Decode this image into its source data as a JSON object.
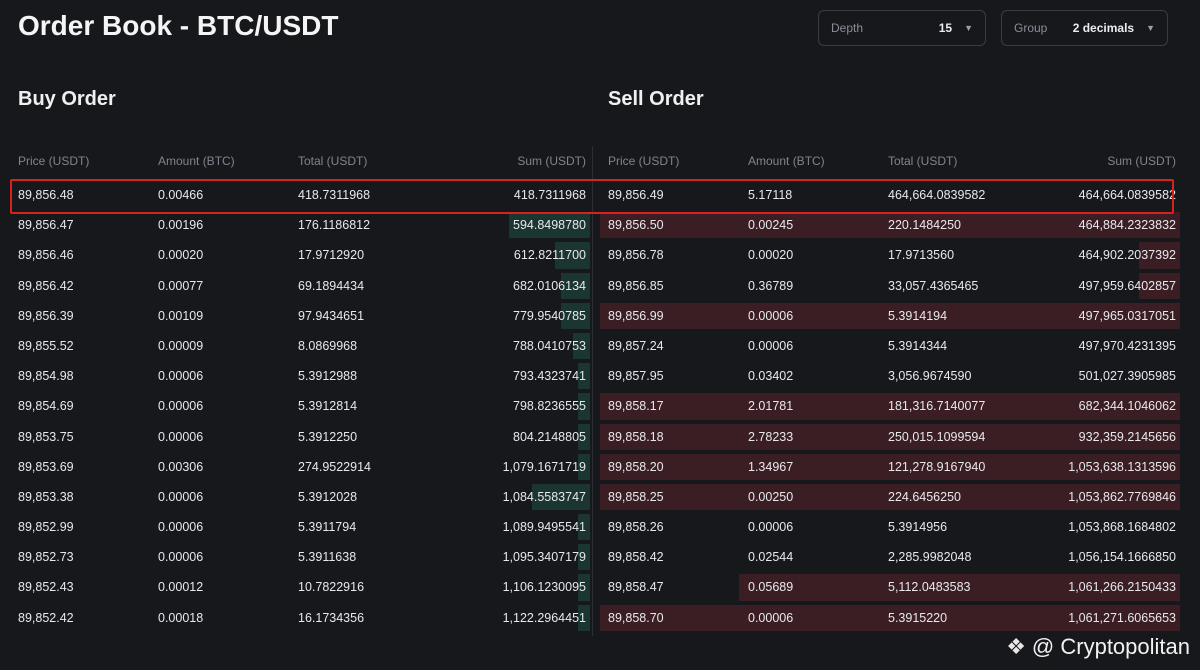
{
  "title": "Order Book - BTC/USDT",
  "controls": {
    "depth": {
      "label": "Depth",
      "value": "15"
    },
    "group": {
      "label": "Group",
      "value": "2 decimals"
    }
  },
  "columns": {
    "price": "Price (USDT)",
    "amount": "Amount (BTC)",
    "total": "Total (USDT)",
    "sum": "Sum (USDT)"
  },
  "buy": {
    "title": "Buy Order",
    "rows": [
      {
        "price": "89,856.48",
        "amount": "0.00466",
        "total": "418.7311968",
        "sum": "418.7311968",
        "depth": 0.0
      },
      {
        "price": "89,856.47",
        "amount": "0.00196",
        "total": "176.1186812",
        "sum": "594.8498780",
        "depth": 0.14
      },
      {
        "price": "89,856.46",
        "amount": "0.00020",
        "total": "17.9712920",
        "sum": "612.8211700",
        "depth": 0.06
      },
      {
        "price": "89,856.42",
        "amount": "0.00077",
        "total": "69.1894434",
        "sum": "682.0106134",
        "depth": 0.05
      },
      {
        "price": "89,856.39",
        "amount": "0.00109",
        "total": "97.9434651",
        "sum": "779.9540785",
        "depth": 0.05
      },
      {
        "price": "89,855.52",
        "amount": "0.00009",
        "total": "8.0869968",
        "sum": "788.0410753",
        "depth": 0.03
      },
      {
        "price": "89,854.98",
        "amount": "0.00006",
        "total": "5.3912988",
        "sum": "793.4323741",
        "depth": 0.02
      },
      {
        "price": "89,854.69",
        "amount": "0.00006",
        "total": "5.3912814",
        "sum": "798.8236555",
        "depth": 0.02
      },
      {
        "price": "89,853.75",
        "amount": "0.00006",
        "total": "5.3912250",
        "sum": "804.2148805",
        "depth": 0.02
      },
      {
        "price": "89,853.69",
        "amount": "0.00306",
        "total": "274.9522914",
        "sum": "1,079.1671719",
        "depth": 0.02
      },
      {
        "price": "89,853.38",
        "amount": "0.00006",
        "total": "5.3912028",
        "sum": "1,084.5583747",
        "depth": 0.1
      },
      {
        "price": "89,852.99",
        "amount": "0.00006",
        "total": "5.3911794",
        "sum": "1,089.9495541",
        "depth": 0.02
      },
      {
        "price": "89,852.73",
        "amount": "0.00006",
        "total": "5.3911638",
        "sum": "1,095.3407179",
        "depth": 0.02
      },
      {
        "price": "89,852.43",
        "amount": "0.00012",
        "total": "10.7822916",
        "sum": "1,106.1230095",
        "depth": 0.02
      },
      {
        "price": "89,852.42",
        "amount": "0.00018",
        "total": "16.1734356",
        "sum": "1,122.2964451",
        "depth": 0.02
      }
    ]
  },
  "sell": {
    "title": "Sell Order",
    "rows": [
      {
        "price": "89,856.49",
        "amount": "5.17118",
        "total": "464,664.0839582",
        "sum": "464,664.0839582",
        "depth": 0.0
      },
      {
        "price": "89,856.50",
        "amount": "0.00245",
        "total": "220.1484250",
        "sum": "464,884.2323832",
        "depth": 1.0
      },
      {
        "price": "89,856.78",
        "amount": "0.00020",
        "total": "17.9713560",
        "sum": "464,902.2037392",
        "depth": 0.07
      },
      {
        "price": "89,856.85",
        "amount": "0.36789",
        "total": "33,057.4365465",
        "sum": "497,959.6402857",
        "depth": 0.07
      },
      {
        "price": "89,856.99",
        "amount": "0.00006",
        "total": "5.3914194",
        "sum": "497,965.0317051",
        "depth": 1.0
      },
      {
        "price": "89,857.24",
        "amount": "0.00006",
        "total": "5.3914344",
        "sum": "497,970.4231395",
        "depth": 0.0
      },
      {
        "price": "89,857.95",
        "amount": "0.03402",
        "total": "3,056.9674590",
        "sum": "501,027.3905985",
        "depth": 0.0
      },
      {
        "price": "89,858.17",
        "amount": "2.01781",
        "total": "181,316.7140077",
        "sum": "682,344.1046062",
        "depth": 1.0
      },
      {
        "price": "89,858.18",
        "amount": "2.78233",
        "total": "250,015.1099594",
        "sum": "932,359.2145656",
        "depth": 1.0
      },
      {
        "price": "89,858.20",
        "amount": "1.34967",
        "total": "121,278.9167940",
        "sum": "1,053,638.1313596",
        "depth": 1.0
      },
      {
        "price": "89,858.25",
        "amount": "0.00250",
        "total": "224.6456250",
        "sum": "1,053,862.7769846",
        "depth": 1.0
      },
      {
        "price": "89,858.26",
        "amount": "0.00006",
        "total": "5.3914956",
        "sum": "1,053,868.1684802",
        "depth": 0.0
      },
      {
        "price": "89,858.42",
        "amount": "0.02544",
        "total": "2,285.9982048",
        "sum": "1,056,154.1666850",
        "depth": 0.0
      },
      {
        "price": "89,858.47",
        "amount": "0.05689",
        "total": "5,112.0483583",
        "sum": "1,061,266.2150433",
        "depth": 0.76
      },
      {
        "price": "89,858.70",
        "amount": "0.00006",
        "total": "5.3915220",
        "sum": "1,061,271.6065653",
        "depth": 1.0
      }
    ]
  },
  "watermark": {
    "text": "@ Cryptopolitan",
    "icon": "cryptopolitan-logo-icon"
  },
  "colors": {
    "buy_bar": "#1b3530",
    "sell_bar": "#3a1e24",
    "highlight": "#d9221f"
  }
}
